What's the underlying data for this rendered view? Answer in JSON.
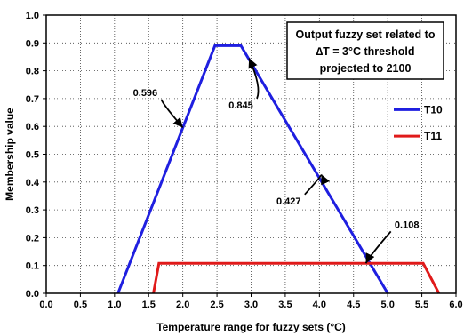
{
  "chart_data": {
    "type": "line",
    "xlabel": "Temperature range for fuzzy sets (°C)",
    "ylabel": "Membership value",
    "xlim": [
      0.0,
      6.0
    ],
    "ylim": [
      0.0,
      1.0
    ],
    "x_ticks": [
      "0.0",
      "0.5",
      "1.0",
      "1.5",
      "2.0",
      "2.5",
      "3.0",
      "3.5",
      "4.0",
      "4.5",
      "5.0",
      "5.5",
      "6.0"
    ],
    "y_ticks": [
      "0.0",
      "0.1",
      "0.2",
      "0.3",
      "0.4",
      "0.5",
      "0.6",
      "0.7",
      "0.8",
      "0.9",
      "1.0"
    ],
    "grid": "dotted",
    "legend_position": "right",
    "series": [
      {
        "name": "T10",
        "color": "#1f1fe0",
        "points": [
          [
            1.05,
            0.0
          ],
          [
            2.47,
            0.89
          ],
          [
            2.85,
            0.89
          ],
          [
            5.0,
            0.0
          ]
        ]
      },
      {
        "name": "T11",
        "color": "#e01a1a",
        "points": [
          [
            1.57,
            0.0
          ],
          [
            1.65,
            0.108
          ],
          [
            5.52,
            0.108
          ],
          [
            5.75,
            0.0
          ]
        ]
      }
    ],
    "text_box": [
      "Output fuzzy set related to",
      "∆T = 3°C  threshold",
      "projected to 2100"
    ],
    "annotations": [
      {
        "text": "0.596",
        "point": [
          2.0,
          0.596
        ],
        "label_pos": [
          1.45,
          0.71
        ]
      },
      {
        "text": "0.845",
        "point": [
          2.97,
          0.845
        ],
        "label_pos": [
          2.85,
          0.665
        ]
      },
      {
        "text": "0.427",
        "point": [
          4.03,
          0.427
        ],
        "label_pos": [
          3.55,
          0.32
        ]
      },
      {
        "text": "0.108",
        "point": [
          4.68,
          0.108
        ],
        "label_pos": [
          5.28,
          0.235
        ]
      }
    ]
  }
}
